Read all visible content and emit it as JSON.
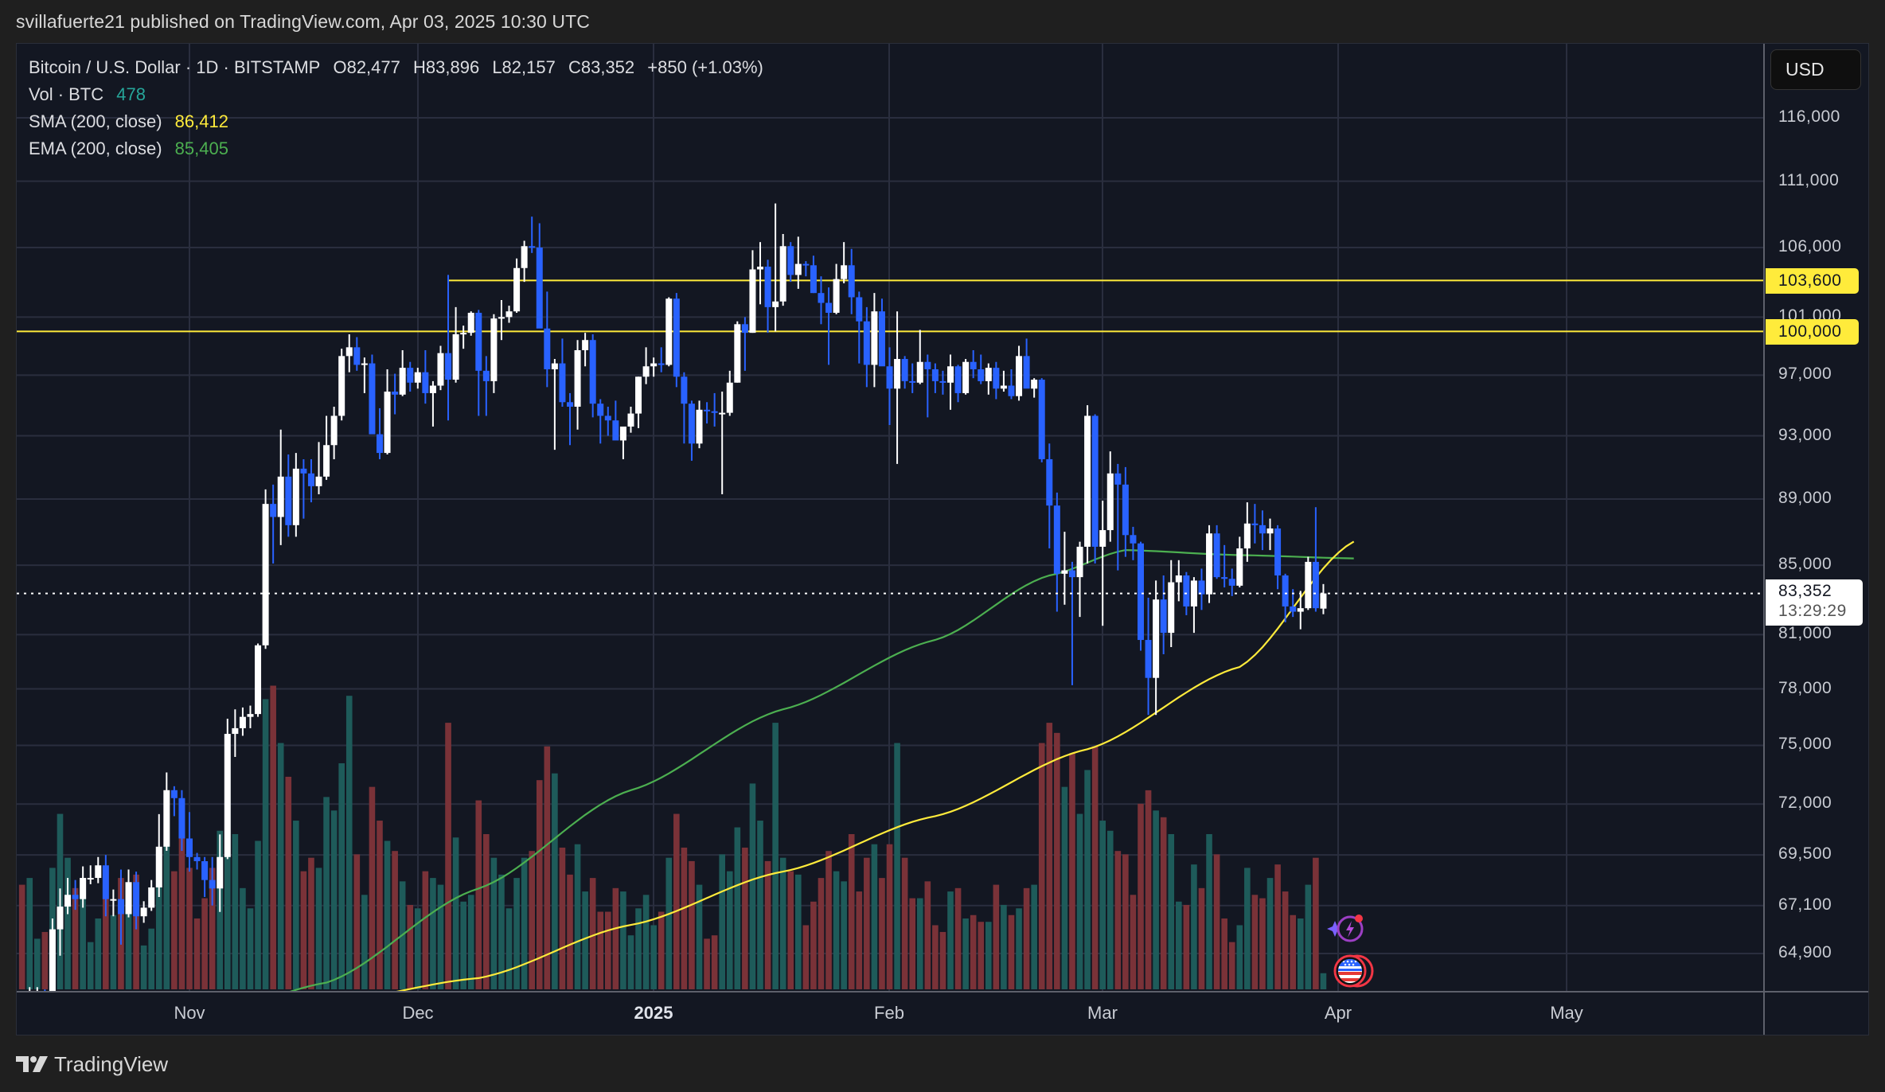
{
  "header": {
    "published": "svillafuerte21 published on TradingView.com, Apr 03, 2025 10:30 UTC"
  },
  "legend": {
    "symbol": "Bitcoin / U.S. Dollar · 1D · BITSTAMP",
    "open": "O82,477",
    "high": "H83,896",
    "low": "L82,157",
    "close": "C83,352",
    "change": "+850 (+1.03%)",
    "vol_label": "Vol · BTC",
    "vol_value": "478",
    "sma_label": "SMA (200, close)",
    "sma_value": "86,412",
    "ema_label": "EMA (200, close)",
    "ema_value": "85,405"
  },
  "price_axis": {
    "currency_button": "USD",
    "ticks": [
      "116,000",
      "111,000",
      "106,000",
      "101,000",
      "97,000",
      "93,000",
      "89,000",
      "85,000",
      "81,000",
      "78,000",
      "75,000",
      "72,000",
      "69,500",
      "67,100",
      "64,900"
    ],
    "levels": [
      {
        "label": "103,600",
        "value": 103600
      },
      {
        "label": "100,000",
        "value": 100000
      }
    ],
    "last_price": "83,352",
    "countdown": "13:29:29"
  },
  "time_axis": {
    "labels": [
      {
        "text": "Nov",
        "bold": false
      },
      {
        "text": "Dec",
        "bold": false
      },
      {
        "text": "2025",
        "bold": true
      },
      {
        "text": "Feb",
        "bold": false
      },
      {
        "text": "Mar",
        "bold": false
      },
      {
        "text": "Apr",
        "bold": false
      },
      {
        "text": "May",
        "bold": false
      }
    ]
  },
  "branding": {
    "logo_text": "TradingView"
  },
  "colors": {
    "background": "#131722",
    "page": "#1f1f1f",
    "grid": "#2a2e3e",
    "candle_up": "#ffffff",
    "candle_down": "#2962ff",
    "volume_up": "#1e5b5a",
    "volume_down": "#7a3238",
    "sma": "#ffeb3b",
    "ema": "#4caf50",
    "level_line": "#ffeb3b",
    "vol_value": "#26a69a"
  },
  "chart_data": {
    "type": "candlestick",
    "title": "Bitcoin / U.S. Dollar · 1D · BITSTAMP",
    "scale": "log",
    "ylim": [
      62500,
      120000
    ],
    "ylabel": "USD",
    "xlabel": "",
    "grid": true,
    "x_ticks": [
      "Nov",
      "Dec",
      "2025",
      "Feb",
      "Mar",
      "Apr",
      "May"
    ],
    "y_ticks": [
      116000,
      111000,
      106000,
      101000,
      97000,
      93000,
      89000,
      85000,
      81000,
      78000,
      75000,
      72000,
      69500,
      67100,
      64900
    ],
    "horizontal_levels": [
      {
        "value": 103600,
        "start": "2024-12-05"
      },
      {
        "value": 100000,
        "start": "2024-10-10"
      }
    ],
    "start_date": "2024-10-10",
    "columns": [
      "open",
      "high",
      "low",
      "close",
      "volume"
    ],
    "candles": [
      [
        61000,
        61400,
        58900,
        60300,
        3100
      ],
      [
        60300,
        63400,
        60100,
        62500,
        3300
      ],
      [
        62500,
        63400,
        62100,
        63200,
        1500
      ],
      [
        63200,
        63300,
        62000,
        62850,
        1700
      ],
      [
        62850,
        66500,
        62400,
        66000,
        3600
      ],
      [
        66000,
        67900,
        64800,
        67050,
        5200
      ],
      [
        67050,
        68400,
        66700,
        67600,
        3900
      ],
      [
        67600,
        68300,
        66900,
        67400,
        3000
      ],
      [
        67400,
        68950,
        67000,
        68400,
        3200
      ],
      [
        68400,
        69000,
        68100,
        68400,
        1400
      ],
      [
        68400,
        69400,
        68150,
        69000,
        2100
      ],
      [
        69000,
        69500,
        66600,
        67400,
        3500
      ],
      [
        67400,
        67850,
        66600,
        67400,
        2200
      ],
      [
        67400,
        68800,
        65300,
        66700,
        3300
      ],
      [
        66700,
        68800,
        66550,
        68200,
        2900
      ],
      [
        68200,
        68700,
        66000,
        66600,
        3400
      ],
      [
        66600,
        67300,
        66300,
        67000,
        1300
      ],
      [
        67000,
        68300,
        66850,
        67950,
        1800
      ],
      [
        67950,
        71500,
        67500,
        69900,
        4000
      ],
      [
        69900,
        73600,
        69700,
        72700,
        5200
      ],
      [
        72700,
        72900,
        71400,
        72300,
        3500
      ],
      [
        72300,
        72700,
        69700,
        70300,
        4800
      ],
      [
        70300,
        71600,
        68700,
        69400,
        3600
      ],
      [
        69400,
        69600,
        68800,
        69200,
        2100
      ],
      [
        69200,
        69400,
        67500,
        68300,
        2700
      ],
      [
        68300,
        69400,
        67100,
        67900,
        3600
      ],
      [
        67900,
        70500,
        66800,
        69400,
        4700
      ],
      [
        69400,
        76400,
        69300,
        75600,
        7200
      ],
      [
        75600,
        76900,
        74400,
        75900,
        4600
      ],
      [
        75900,
        77000,
        75500,
        76500,
        3000
      ],
      [
        76500,
        77100,
        75900,
        76650,
        2400
      ],
      [
        76650,
        80500,
        76500,
        80400,
        4400
      ],
      [
        80400,
        89600,
        80200,
        88700,
        8600
      ],
      [
        88700,
        89900,
        85100,
        87900,
        9000
      ],
      [
        87900,
        93400,
        86200,
        90400,
        7300
      ],
      [
        90400,
        91800,
        86700,
        87400,
        6300
      ],
      [
        87400,
        91900,
        86700,
        90900,
        5000
      ],
      [
        90900,
        91500,
        87800,
        90600,
        3500
      ],
      [
        90600,
        91500,
        88800,
        89800,
        3900
      ],
      [
        89800,
        92600,
        89300,
        90400,
        3600
      ],
      [
        90400,
        94300,
        90200,
        92400,
        5700
      ],
      [
        92400,
        94900,
        91500,
        94300,
        5300
      ],
      [
        94300,
        98800,
        94000,
        98300,
        6700
      ],
      [
        98300,
        99800,
        97200,
        98900,
        8700
      ],
      [
        98900,
        99600,
        97300,
        97700,
        4000
      ],
      [
        97700,
        98200,
        95800,
        97800,
        2800
      ],
      [
        97800,
        98400,
        93200,
        93100,
        6000
      ],
      [
        93100,
        94800,
        91500,
        91900,
        5000
      ],
      [
        91900,
        97400,
        91800,
        95900,
        4400
      ],
      [
        95900,
        97100,
        94400,
        95700,
        4100
      ],
      [
        95700,
        98700,
        95600,
        97500,
        3200
      ],
      [
        97500,
        97900,
        95900,
        96500,
        2500
      ],
      [
        96500,
        97500,
        96100,
        97200,
        2400
      ],
      [
        97200,
        98700,
        95100,
        95800,
        3500
      ],
      [
        95800,
        96600,
        93600,
        96300,
        3300
      ],
      [
        96300,
        99000,
        96000,
        98500,
        3100
      ],
      [
        98500,
        104000,
        94000,
        96700,
        7900
      ],
      [
        96700,
        101700,
        96500,
        99800,
        4500
      ],
      [
        99800,
        100400,
        98800,
        99900,
        2600
      ],
      [
        99900,
        101400,
        99700,
        101300,
        2800
      ],
      [
        101300,
        101500,
        94300,
        97300,
        5600
      ],
      [
        97300,
        98300,
        94300,
        96600,
        4600
      ],
      [
        96600,
        101200,
        95800,
        100900,
        3900
      ],
      [
        100900,
        102200,
        99400,
        101000,
        3400
      ],
      [
        101000,
        101800,
        100600,
        101400,
        2400
      ],
      [
        101400,
        105200,
        101300,
        104500,
        3300
      ],
      [
        104500,
        106500,
        103500,
        106100,
        3900
      ],
      [
        106100,
        108300,
        105600,
        106000,
        4100
      ],
      [
        106000,
        107800,
        100300,
        100200,
        6200
      ],
      [
        100200,
        102800,
        96200,
        97400,
        7200
      ],
      [
        97400,
        98100,
        92100,
        97800,
        6400
      ],
      [
        97800,
        99500,
        94900,
        95200,
        4200
      ],
      [
        95200,
        95800,
        92400,
        94900,
        3400
      ],
      [
        94900,
        99400,
        93400,
        98700,
        4300
      ],
      [
        98700,
        99900,
        97600,
        99400,
        2900
      ],
      [
        99400,
        99800,
        94200,
        95100,
        3300
      ],
      [
        95100,
        95400,
        92500,
        94300,
        2300
      ],
      [
        94300,
        94900,
        93000,
        94000,
        2300
      ],
      [
        94000,
        95300,
        92900,
        92700,
        3000
      ],
      [
        92700,
        93500,
        91500,
        93600,
        2900
      ],
      [
        93600,
        94900,
        93200,
        94450,
        1600
      ],
      [
        94450,
        96900,
        93500,
        96900,
        2400
      ],
      [
        96900,
        98900,
        96400,
        97600,
        2800
      ],
      [
        97600,
        98200,
        96900,
        97800,
        1900
      ],
      [
        97800,
        98900,
        97200,
        97700,
        2300
      ],
      [
        97700,
        102400,
        97600,
        102300,
        3900
      ],
      [
        102300,
        102700,
        96200,
        96900,
        5200
      ],
      [
        96900,
        97200,
        92500,
        95100,
        4200
      ],
      [
        95100,
        95300,
        91400,
        92500,
        3800
      ],
      [
        92500,
        95300,
        92200,
        94700,
        3100
      ],
      [
        94700,
        95200,
        93800,
        94600,
        1500
      ],
      [
        94600,
        95800,
        93600,
        94500,
        1600
      ],
      [
        94500,
        95900,
        89300,
        94500,
        4000
      ],
      [
        94500,
        97300,
        94300,
        96500,
        3500
      ],
      [
        96500,
        100700,
        96500,
        100500,
        4800
      ],
      [
        100500,
        101000,
        97300,
        99900,
        4200
      ],
      [
        99900,
        105800,
        99900,
        104400,
        6100
      ],
      [
        104400,
        106400,
        101900,
        104600,
        5000
      ],
      [
        104600,
        105100,
        99900,
        101700,
        3800
      ],
      [
        101700,
        109300,
        100000,
        102100,
        7900
      ],
      [
        102100,
        107000,
        101800,
        106100,
        3900
      ],
      [
        106100,
        106400,
        103500,
        104000,
        3500
      ],
      [
        104000,
        106800,
        103000,
        104800,
        3400
      ],
      [
        104800,
        105000,
        103900,
        104700,
        1900
      ],
      [
        104700,
        105400,
        102700,
        102700,
        2600
      ],
      [
        102700,
        103900,
        100500,
        102000,
        3300
      ],
      [
        102000,
        103100,
        97700,
        101300,
        4100
      ],
      [
        101300,
        104800,
        101200,
        103700,
        3500
      ],
      [
        103700,
        106400,
        103400,
        104700,
        3200
      ],
      [
        104700,
        105900,
        101200,
        102400,
        4600
      ],
      [
        102400,
        102800,
        97800,
        100700,
        2900
      ],
      [
        100700,
        101700,
        96200,
        97700,
        3900
      ],
      [
        97700,
        102700,
        96200,
        101400,
        4300
      ],
      [
        101400,
        102300,
        99200,
        97600,
        3300
      ],
      [
        97600,
        98900,
        93700,
        96100,
        4300
      ],
      [
        96100,
        101400,
        91200,
        98100,
        7300
      ],
      [
        98100,
        98300,
        96100,
        96600,
        3900
      ],
      [
        96600,
        97800,
        95800,
        96500,
        2700
      ],
      [
        96500,
        100100,
        96400,
        97900,
        2700
      ],
      [
        97900,
        98400,
        94200,
        97400,
        3200
      ],
      [
        97400,
        97800,
        95800,
        96600,
        1900
      ],
      [
        96600,
        97300,
        95700,
        96500,
        1700
      ],
      [
        96500,
        98400,
        94700,
        97600,
        2900
      ],
      [
        97600,
        97700,
        95200,
        95800,
        3000
      ],
      [
        95800,
        98100,
        95700,
        97900,
        2100
      ],
      [
        97900,
        98700,
        96800,
        97400,
        2200
      ],
      [
        97400,
        98400,
        96400,
        96600,
        2000
      ],
      [
        96600,
        97800,
        95700,
        97500,
        2000
      ],
      [
        97500,
        97900,
        95400,
        96100,
        3100
      ],
      [
        96100,
        97300,
        95900,
        96300,
        2500
      ],
      [
        96300,
        97400,
        95400,
        95600,
        2200
      ],
      [
        95600,
        99000,
        95300,
        98300,
        2400
      ],
      [
        98300,
        99500,
        96500,
        96100,
        3000
      ],
      [
        96100,
        96800,
        95500,
        96700,
        3100
      ],
      [
        96700,
        96800,
        91300,
        91500,
        7300
      ],
      [
        91500,
        92500,
        86000,
        88600,
        7900
      ],
      [
        88600,
        89400,
        82300,
        84500,
        7600
      ],
      [
        84500,
        87000,
        82700,
        84700,
        6000
      ],
      [
        84700,
        85200,
        78200,
        84300,
        7000
      ],
      [
        84300,
        86400,
        82000,
        86100,
        5200
      ],
      [
        86100,
        95000,
        85100,
        94300,
        6500
      ],
      [
        94300,
        94400,
        85100,
        86100,
        7200
      ],
      [
        86100,
        88900,
        81500,
        87100,
        5000
      ],
      [
        87100,
        92000,
        86400,
        90600,
        4700
      ],
      [
        90600,
        91200,
        84700,
        89900,
        4100
      ],
      [
        89900,
        91000,
        85500,
        86800,
        4000
      ],
      [
        86800,
        87300,
        85300,
        86300,
        2800
      ],
      [
        86300,
        86400,
        80100,
        80700,
        5500
      ],
      [
        80700,
        83100,
        76600,
        78600,
        5900
      ],
      [
        78600,
        84100,
        76600,
        83000,
        5300
      ],
      [
        83000,
        84400,
        79900,
        81100,
        5100
      ],
      [
        81100,
        85300,
        80300,
        84000,
        4600
      ],
      [
        84000,
        85300,
        82900,
        84400,
        2600
      ],
      [
        84400,
        84600,
        82100,
        82600,
        2500
      ],
      [
        82600,
        84300,
        81100,
        84100,
        3700
      ],
      [
        84100,
        84800,
        82400,
        83300,
        3000
      ],
      [
        83300,
        87400,
        82800,
        86900,
        4600
      ],
      [
        86900,
        87400,
        84200,
        84300,
        4000
      ],
      [
        84300,
        86200,
        83700,
        84200,
        2100
      ],
      [
        84200,
        84800,
        83200,
        83800,
        1400
      ],
      [
        83800,
        86700,
        83700,
        86000,
        1900
      ],
      [
        86000,
        88800,
        85200,
        87500,
        3600
      ],
      [
        87500,
        88700,
        86300,
        87400,
        2800
      ],
      [
        87400,
        88300,
        85900,
        86900,
        2700
      ],
      [
        86900,
        87800,
        85900,
        87200,
        3300
      ],
      [
        87200,
        87400,
        83600,
        84400,
        3700
      ],
      [
        84400,
        84500,
        81700,
        82600,
        2900
      ],
      [
        82600,
        83600,
        82000,
        82300,
        2200
      ],
      [
        82300,
        83500,
        81300,
        82500,
        2100
      ],
      [
        82500,
        85500,
        82400,
        85200,
        3100
      ],
      [
        85200,
        88500,
        82300,
        82500,
        3900
      ],
      [
        82477,
        83896,
        82157,
        83352,
        478
      ]
    ],
    "sma_200": [
      [
        0,
        62800
      ],
      [
        20,
        62600
      ],
      [
        40,
        62700
      ],
      [
        60,
        63800
      ],
      [
        80,
        66200
      ],
      [
        100,
        68700
      ],
      [
        120,
        71400
      ],
      [
        140,
        74800
      ],
      [
        160,
        79200
      ],
      [
        175,
        86412
      ]
    ],
    "ema_200": [
      [
        0,
        62100
      ],
      [
        20,
        61500
      ],
      [
        40,
        63600
      ],
      [
        60,
        67900
      ],
      [
        80,
        72700
      ],
      [
        100,
        76900
      ],
      [
        120,
        80700
      ],
      [
        135,
        84400
      ],
      [
        145,
        85900
      ],
      [
        160,
        85600
      ],
      [
        175,
        85405
      ]
    ]
  }
}
